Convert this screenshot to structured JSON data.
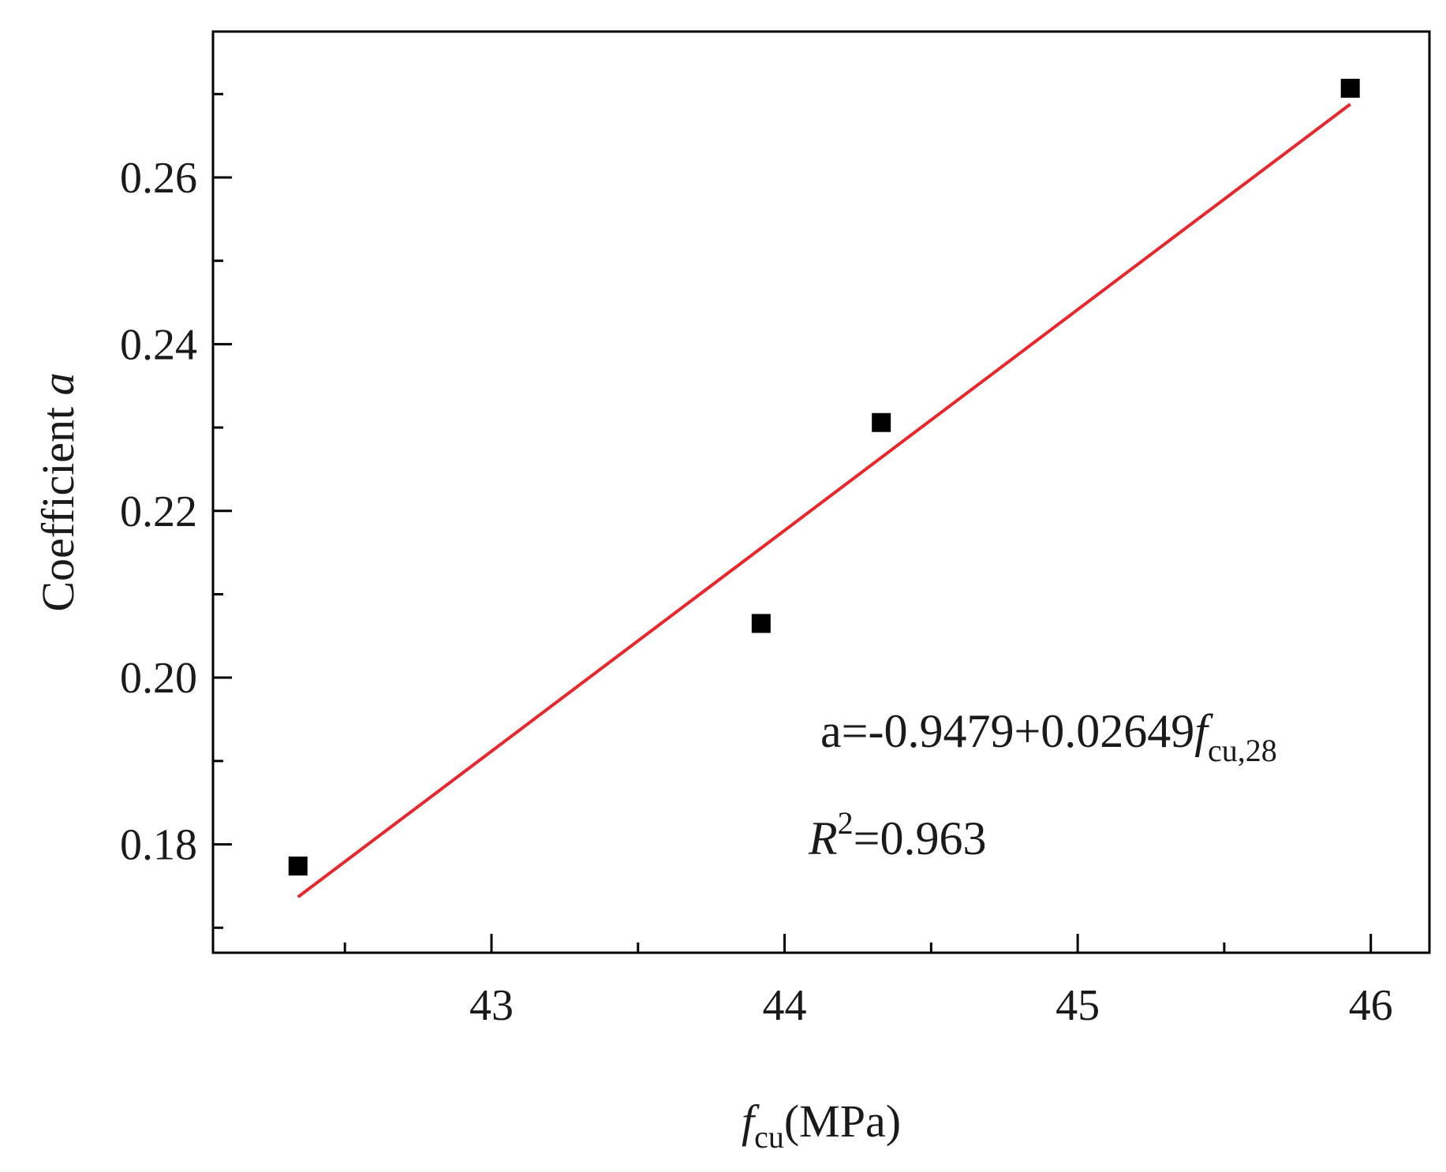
{
  "chart_data": {
    "type": "scatter",
    "xlabel": {
      "main": "f",
      "sub": "cu",
      "tail": "(MPa)"
    },
    "ylabel": {
      "main": "Coefficient ",
      "italic": "a"
    },
    "xlim": [
      42.05,
      46.2
    ],
    "ylim": [
      0.167,
      0.2775
    ],
    "x_ticks": [
      43,
      44,
      45,
      46
    ],
    "x_tick_labels": [
      "43",
      "44",
      "45",
      "46"
    ],
    "x_minor_ticks": [
      42.5,
      43.5,
      44.5,
      45.5
    ],
    "y_ticks": [
      0.18,
      0.2,
      0.22,
      0.24,
      0.26
    ],
    "y_tick_labels": [
      "0.18",
      "0.20",
      "0.22",
      "0.24",
      "0.26"
    ],
    "y_minor_ticks": [
      0.17,
      0.19,
      0.21,
      0.23,
      0.25,
      0.27
    ],
    "grid": false,
    "series": [
      {
        "marker": "square",
        "color": "#000000",
        "points": [
          {
            "x": 42.34,
            "y": 0.1774
          },
          {
            "x": 43.92,
            "y": 0.2065
          },
          {
            "x": 44.33,
            "y": 0.2306
          },
          {
            "x": 45.93,
            "y": 0.2707
          }
        ]
      }
    ],
    "fit": {
      "color": "#e8262b",
      "intercept": -0.9479,
      "slope": 0.02649,
      "x_range": [
        42.34,
        45.93
      ]
    },
    "annotations": {
      "equation": {
        "lhs": "a=-0.9479+0.02649",
        "var": "f",
        "sub": "cu,28"
      },
      "r2": {
        "var": "R",
        "sup": "2",
        "value": "=0.963"
      }
    }
  }
}
